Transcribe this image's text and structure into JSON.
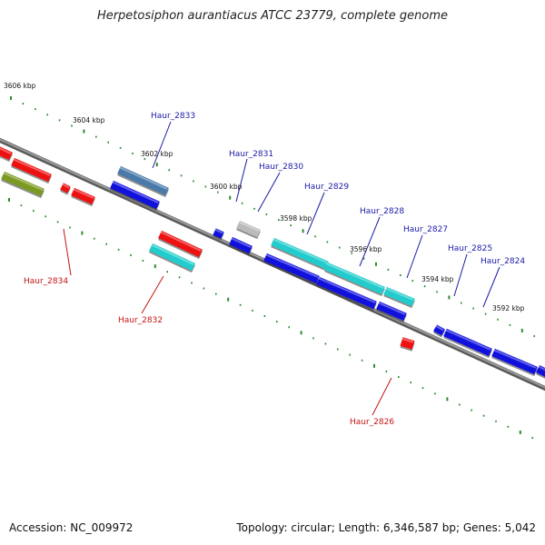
{
  "title": "Herpetosiphon aurantiacus ATCC 23779, complete genome",
  "footer": {
    "accession": "Accession: NC_009972",
    "topology": "Topology: circular; Length: 6,346,587 bp; Genes: 5,042"
  },
  "colors": {
    "backbone": "#8a8a8a",
    "tick": "#2e8b2e",
    "forward_label": "#1a1aa8",
    "reverse_label": "#c41414",
    "red": "#ee1111",
    "blue": "#1111dd",
    "cyan": "#22cccc",
    "steelblue": "#4a7aaa",
    "olive": "#7a9a22",
    "gray": "#bbbbbb"
  },
  "kbp_labels": [
    "3606 kbp",
    "3604 kbp",
    "3602 kbp",
    "3600 kbp",
    "3598 kbp",
    "3596 kbp",
    "3594 kbp",
    "3592 kbp"
  ],
  "gene_labels": {
    "forward": [
      "Haur_2833",
      "Haur_2831",
      "Haur_2830",
      "Haur_2829",
      "Haur_2828",
      "Haur_2827",
      "Haur_2825",
      "Haur_2824"
    ],
    "reverse": [
      "Haur_2834",
      "Haur_2832",
      "Haur_2826"
    ]
  }
}
